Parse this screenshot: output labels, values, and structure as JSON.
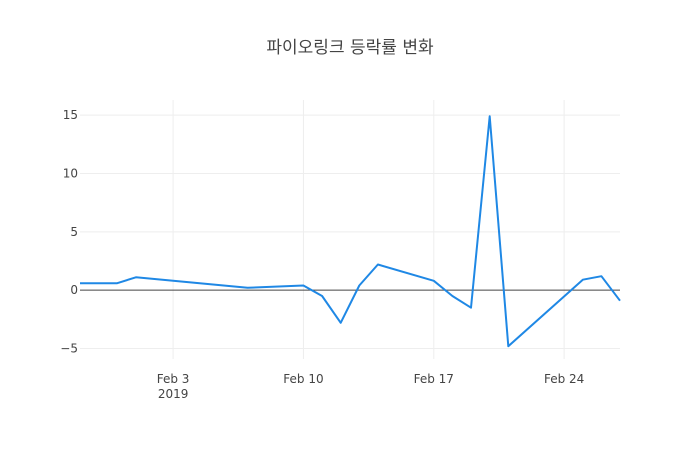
{
  "chart_data": {
    "type": "line",
    "title": "파이오링크 등락률 변화",
    "xlabel": "",
    "ylabel": "",
    "ylim": [
      -5.9,
      16.3
    ],
    "xlim": [
      "2019-01-29",
      "2019-02-27"
    ],
    "grid": true,
    "zero_line": true,
    "x_ticks": [
      {
        "date": "2019-02-03",
        "label": "Feb 3",
        "sublabel": "2019"
      },
      {
        "date": "2019-02-10",
        "label": "Feb 10",
        "sublabel": ""
      },
      {
        "date": "2019-02-17",
        "label": "Feb 17",
        "sublabel": ""
      },
      {
        "date": "2019-02-24",
        "label": "Feb 24",
        "sublabel": ""
      }
    ],
    "y_ticks": [
      {
        "value": 15,
        "label": "15"
      },
      {
        "value": 10,
        "label": "10"
      },
      {
        "value": 5,
        "label": "5"
      },
      {
        "value": 0,
        "label": "0"
      },
      {
        "value": -5,
        "label": "−5"
      }
    ],
    "series": [
      {
        "color": "#1f88e5",
        "points": [
          {
            "x": "2019-01-29",
            "y": 0.6
          },
          {
            "x": "2019-01-31",
            "y": 0.6
          },
          {
            "x": "2019-02-01",
            "y": 1.1
          },
          {
            "x": "2019-02-07",
            "y": 0.2
          },
          {
            "x": "2019-02-10",
            "y": 0.4
          },
          {
            "x": "2019-02-11",
            "y": -0.5
          },
          {
            "x": "2019-02-12",
            "y": -2.8
          },
          {
            "x": "2019-02-13",
            "y": 0.4
          },
          {
            "x": "2019-02-14",
            "y": 2.2
          },
          {
            "x": "2019-02-17",
            "y": 0.8
          },
          {
            "x": "2019-02-18",
            "y": -0.5
          },
          {
            "x": "2019-02-19",
            "y": -1.5
          },
          {
            "x": "2019-02-20",
            "y": 14.9
          },
          {
            "x": "2019-02-21",
            "y": -4.8
          },
          {
            "x": "2019-02-25",
            "y": 0.9
          },
          {
            "x": "2019-02-26",
            "y": 1.2
          },
          {
            "x": "2019-02-27",
            "y": -0.9
          }
        ]
      }
    ]
  }
}
